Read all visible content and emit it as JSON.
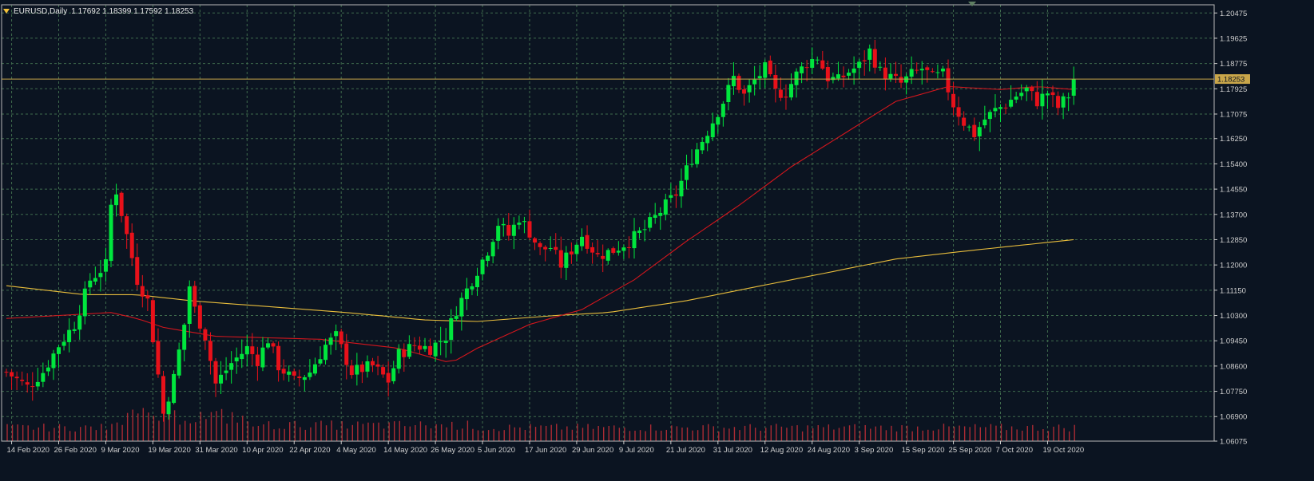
{
  "header": {
    "symbol": "EURUSD,Daily",
    "ohlc": "1.17692 1.18399 1.17592 1.18253"
  },
  "colors": {
    "background": "#0b1421",
    "grid": "#3f6b4d",
    "axis": "#cfcfcf",
    "bull": "#00e63d",
    "bear": "#e8111a",
    "ma_fast": "#d3161d",
    "ma_slow": "#e8bd3c",
    "current_price_line": "#c9a64a",
    "volume": "#aa2b34"
  },
  "chart_data": {
    "type": "candlestick",
    "symbol": "EURUSD",
    "timeframe": "Daily",
    "y_ticks": [
      "1.20475",
      "1.19625",
      "1.18775",
      "1.17925",
      "1.17075",
      "1.16250",
      "1.15400",
      "1.14550",
      "1.13700",
      "1.12850",
      "1.12000",
      "1.11150",
      "1.10300",
      "1.09450",
      "1.08600",
      "1.07750",
      "1.06900",
      "1.06075"
    ],
    "ylim": [
      1.06075,
      1.2075
    ],
    "x_ticks": [
      "14 Feb 2020",
      "26 Feb 2020",
      "9 Mar 2020",
      "19 Mar 2020",
      "31 Mar 2020",
      "10 Apr 2020",
      "22 Apr 2020",
      "4 May 2020",
      "14 May 2020",
      "26 May 2020",
      "5 Jun 2020",
      "17 Jun 2020",
      "29 Jun 2020",
      "9 Jul 2020",
      "21 Jul 2020",
      "31 Jul 2020",
      "12 Aug 2020",
      "24 Aug 2020",
      "3 Sep 2020",
      "15 Sep 2020",
      "25 Sep 2020",
      "7 Oct 2020",
      "19 Oct 2020"
    ],
    "current_price": "1.18253",
    "grid": true,
    "anchors": [
      [
        0,
        1.084
      ],
      [
        4,
        1.079
      ],
      [
        7,
        1.084
      ],
      [
        10,
        1.093
      ],
      [
        13,
        1.1
      ],
      [
        16,
        1.115
      ],
      [
        19,
        1.12
      ],
      [
        20,
        1.14
      ],
      [
        21,
        1.145
      ],
      [
        23,
        1.13
      ],
      [
        25,
        1.115
      ],
      [
        27,
        1.108
      ],
      [
        29,
        1.083
      ],
      [
        30,
        1.07
      ],
      [
        32,
        1.082
      ],
      [
        34,
        1.1
      ],
      [
        35,
        1.113
      ],
      [
        36,
        1.105
      ],
      [
        38,
        1.096
      ],
      [
        40,
        1.08
      ],
      [
        43,
        1.087
      ],
      [
        46,
        1.092
      ],
      [
        48,
        1.088
      ],
      [
        50,
        1.095
      ],
      [
        52,
        1.086
      ],
      [
        55,
        1.081
      ],
      [
        58,
        1.084
      ],
      [
        61,
        1.093
      ],
      [
        63,
        1.096
      ],
      [
        66,
        1.084
      ],
      [
        70,
        1.086
      ],
      [
        73,
        1.081
      ],
      [
        75,
        1.09
      ],
      [
        78,
        1.093
      ],
      [
        81,
        1.092
      ],
      [
        84,
        1.096
      ],
      [
        86,
        1.105
      ],
      [
        89,
        1.115
      ],
      [
        92,
        1.125
      ],
      [
        94,
        1.134
      ],
      [
        96,
        1.13
      ],
      [
        98,
        1.136
      ],
      [
        100,
        1.131
      ],
      [
        102,
        1.125
      ],
      [
        104,
        1.126
      ],
      [
        106,
        1.12
      ],
      [
        108,
        1.125
      ],
      [
        110,
        1.13
      ],
      [
        113,
        1.123
      ],
      [
        116,
        1.125
      ],
      [
        119,
        1.128
      ],
      [
        122,
        1.132
      ],
      [
        125,
        1.138
      ],
      [
        128,
        1.144
      ],
      [
        131,
        1.156
      ],
      [
        134,
        1.165
      ],
      [
        137,
        1.175
      ],
      [
        139,
        1.183
      ],
      [
        141,
        1.177
      ],
      [
        143,
        1.182
      ],
      [
        145,
        1.186
      ],
      [
        147,
        1.178
      ],
      [
        149,
        1.178
      ],
      [
        151,
        1.184
      ],
      [
        153,
        1.188
      ],
      [
        155,
        1.19
      ],
      [
        157,
        1.183
      ],
      [
        159,
        1.182
      ],
      [
        161,
        1.185
      ],
      [
        163,
        1.187
      ],
      [
        165,
        1.192
      ],
      [
        167,
        1.185
      ],
      [
        169,
        1.183
      ],
      [
        171,
        1.181
      ],
      [
        173,
        1.184
      ],
      [
        175,
        1.186
      ],
      [
        177,
        1.183
      ],
      [
        179,
        1.184
      ],
      [
        181,
        1.174
      ],
      [
        183,
        1.168
      ],
      [
        185,
        1.164
      ],
      [
        187,
        1.169
      ],
      [
        189,
        1.172
      ],
      [
        191,
        1.174
      ],
      [
        193,
        1.177
      ],
      [
        195,
        1.179
      ],
      [
        197,
        1.175
      ],
      [
        199,
        1.178
      ],
      [
        201,
        1.173
      ],
      [
        203,
        1.177
      ],
      [
        204,
        1.1825
      ]
    ],
    "ma_fast": [
      [
        0,
        1.102
      ],
      [
        10,
        1.103
      ],
      [
        20,
        1.104
      ],
      [
        25,
        1.102
      ],
      [
        30,
        1.099
      ],
      [
        40,
        1.096
      ],
      [
        60,
        1.095
      ],
      [
        75,
        1.092
      ],
      [
        85,
        1.087
      ],
      [
        90,
        1.092
      ],
      [
        100,
        1.1
      ],
      [
        110,
        1.105
      ],
      [
        120,
        1.115
      ],
      [
        130,
        1.128
      ],
      [
        140,
        1.14
      ],
      [
        150,
        1.153
      ],
      [
        160,
        1.164
      ],
      [
        170,
        1.175
      ],
      [
        180,
        1.18
      ],
      [
        190,
        1.179
      ],
      [
        197,
        1.18
      ],
      [
        204,
        1.179
      ]
    ],
    "ma_slow": [
      [
        0,
        1.113
      ],
      [
        15,
        1.11
      ],
      [
        25,
        1.11
      ],
      [
        35,
        1.108
      ],
      [
        50,
        1.106
      ],
      [
        65,
        1.104
      ],
      [
        80,
        1.1015
      ],
      [
        90,
        1.101
      ],
      [
        105,
        1.103
      ],
      [
        115,
        1.104
      ],
      [
        130,
        1.108
      ],
      [
        150,
        1.115
      ],
      [
        170,
        1.122
      ],
      [
        185,
        1.125
      ],
      [
        204,
        1.1285
      ]
    ]
  }
}
